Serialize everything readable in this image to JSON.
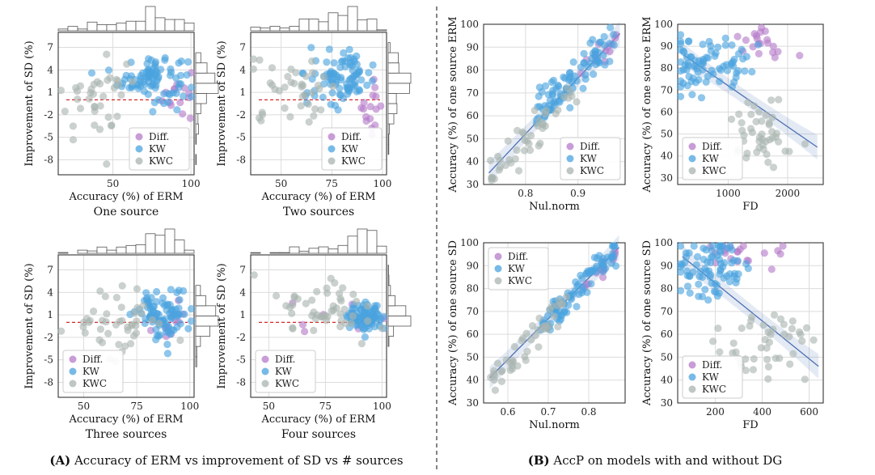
{
  "colors": {
    "Diff.": "#b57bc9",
    "KW": "#4aa3df",
    "KWC": "#a9b4b0",
    "regression": "#4a6fb5",
    "baseline": "#d62728"
  },
  "captions": {
    "A_label": "(A)",
    "A_text": " Accuracy of ERM vs improvement of SD vs # sources",
    "B_label": "(B)",
    "B_text": " AccP on models with and without DG"
  },
  "chart_data": [
    {
      "id": "a1",
      "type": "scatter",
      "title": "One source",
      "xlabel": "Accuracy (%) of ERM",
      "ylabel": "Improvement of SD (%)",
      "xticks": [
        50,
        100
      ],
      "yticks": [
        7,
        4,
        1,
        -2,
        -5,
        -8
      ],
      "xlim": [
        15,
        102
      ],
      "ylim": [
        -10,
        9
      ],
      "baseline": 0,
      "legend": [
        "Diff.",
        "KW",
        "KWC"
      ],
      "legend_position": "lower-right",
      "marginal_hist": true,
      "series": [
        {
          "name": "Diff.",
          "center": [
            92,
            0.5
          ],
          "spread": [
            5,
            2
          ],
          "n": 14
        },
        {
          "name": "KW",
          "center": [
            75,
            3
          ],
          "spread": [
            11,
            1.6
          ],
          "n": 90
        },
        {
          "name": "KWC",
          "center": [
            40,
            0
          ],
          "spread": [
            13,
            2.8
          ],
          "n": 38
        }
      ]
    },
    {
      "id": "a2",
      "type": "scatter",
      "title": "Two sources",
      "xlabel": "Accuracy (%) of ERM",
      "ylabel": "Improvement of SD (%)",
      "xticks": [
        50,
        75,
        100
      ],
      "yticks": [
        7,
        4,
        1,
        -2,
        -5,
        -8
      ],
      "xlim": [
        35,
        102
      ],
      "ylim": [
        -10,
        9
      ],
      "baseline": 0,
      "legend": [
        "Diff.",
        "KW",
        "KWC"
      ],
      "legend_position": "lower-right",
      "marginal_hist": true,
      "series": [
        {
          "name": "Diff.",
          "center": [
            94,
            -1.5
          ],
          "spread": [
            3,
            1.8
          ],
          "n": 16
        },
        {
          "name": "KW",
          "center": [
            80,
            3
          ],
          "spread": [
            8,
            1.8
          ],
          "n": 90
        },
        {
          "name": "KWC",
          "center": [
            58,
            1.5
          ],
          "spread": [
            11,
            2.2
          ],
          "n": 40
        }
      ]
    },
    {
      "id": "a3",
      "type": "scatter",
      "title": "Three sources",
      "xlabel": "Accuracy (%) of ERM",
      "ylabel": "Improvement of SD (%)",
      "xticks": [
        50,
        75,
        100
      ],
      "yticks": [
        7,
        4,
        1,
        -2,
        -5,
        -8
      ],
      "xlim": [
        38,
        102
      ],
      "ylim": [
        -10,
        9
      ],
      "baseline": 0,
      "legend": [
        "Diff.",
        "KW",
        "KWC"
      ],
      "legend_position": "lower-left",
      "marginal_hist": true,
      "series": [
        {
          "name": "Diff.",
          "center": [
            90,
            0
          ],
          "spread": [
            5,
            1.5
          ],
          "n": 14
        },
        {
          "name": "KW",
          "center": [
            88,
            1
          ],
          "spread": [
            6,
            1.6
          ],
          "n": 90
        },
        {
          "name": "KWC",
          "center": [
            65,
            0
          ],
          "spread": [
            12,
            2.4
          ],
          "n": 45
        }
      ]
    },
    {
      "id": "a4",
      "type": "scatter",
      "title": "Four sources",
      "xlabel": "Accuracy (%) of ERM",
      "ylabel": "Improvement of SD (%)",
      "xticks": [
        50,
        75,
        100
      ],
      "yticks": [
        7,
        4,
        1,
        -2,
        -5,
        -8
      ],
      "xlim": [
        42,
        102
      ],
      "ylim": [
        -10,
        9
      ],
      "baseline": 0,
      "legend": [
        "Diff.",
        "KW",
        "KWC"
      ],
      "legend_position": "lower-left",
      "marginal_hist": true,
      "series": [
        {
          "name": "Diff.",
          "center": [
            80,
            1
          ],
          "spread": [
            12,
            2
          ],
          "n": 8
        },
        {
          "name": "KW",
          "center": [
            93,
            0.6
          ],
          "spread": [
            4,
            1
          ],
          "n": 90
        },
        {
          "name": "KWC",
          "center": [
            75,
            2
          ],
          "spread": [
            11,
            2
          ],
          "n": 50
        }
      ]
    },
    {
      "id": "b1",
      "type": "scatter",
      "title": "",
      "xlabel": "Nul.norm",
      "ylabel": "Accuracy (%) of one source ERM",
      "xticks": [
        0.8,
        0.9
      ],
      "yticks": [
        30,
        40,
        50,
        60,
        70,
        80,
        90,
        100
      ],
      "xlim": [
        0.72,
        0.99
      ],
      "ylim": [
        30,
        100
      ],
      "legend": [
        "Diff.",
        "KW",
        "KWC"
      ],
      "legend_position": "lower-right",
      "regression": [
        [
          0.73,
          35
        ],
        [
          0.98,
          96
        ]
      ],
      "series": [
        {
          "name": "Diff.",
          "line": [
            [
              0.9,
              78
            ],
            [
              0.975,
              96
            ]
          ],
          "noise": 2,
          "n": 14
        },
        {
          "name": "KW",
          "line": [
            [
              0.82,
              60
            ],
            [
              0.97,
              95
            ]
          ],
          "noise": 4,
          "n": 90
        },
        {
          "name": "KWC",
          "line": [
            [
              0.73,
              35
            ],
            [
              0.9,
              70
            ]
          ],
          "noise": 4,
          "n": 45
        }
      ]
    },
    {
      "id": "b2",
      "type": "scatter",
      "title": "",
      "xlabel": "FD",
      "ylabel": "Accuracy (%) of one source ERM",
      "xticks": [
        1000,
        2000
      ],
      "yticks": [
        30,
        40,
        50,
        60,
        70,
        80,
        90,
        100
      ],
      "xlim": [
        150,
        2600
      ],
      "ylim": [
        27,
        100
      ],
      "legend": [
        "Diff.",
        "KW",
        "KWC"
      ],
      "legend_position": "lower-left",
      "regression": [
        [
          250,
          86
        ],
        [
          2500,
          44
        ]
      ],
      "series": [
        {
          "name": "Diff.",
          "center": [
            1500,
            92
          ],
          "spread": [
            300,
            4
          ],
          "n": 20
        },
        {
          "name": "KW",
          "center": [
            700,
            82
          ],
          "spread": [
            350,
            8
          ],
          "n": 80
        },
        {
          "name": "KWC",
          "center": [
            1500,
            50
          ],
          "spread": [
            250,
            8
          ],
          "n": 45
        }
      ]
    },
    {
      "id": "b3",
      "type": "scatter",
      "title": "",
      "xlabel": "Nul.norm",
      "ylabel": "Accuracy (%) of one source SD",
      "xticks": [
        0.6,
        0.7,
        0.8
      ],
      "yticks": [
        30,
        40,
        50,
        60,
        70,
        80,
        90,
        100
      ],
      "xlim": [
        0.54,
        0.89
      ],
      "ylim": [
        30,
        100
      ],
      "legend": [
        "Diff.",
        "KW",
        "KWC"
      ],
      "legend_position": "upper-left",
      "regression": [
        [
          0.555,
          41
        ],
        [
          0.875,
          98
        ]
      ],
      "series": [
        {
          "name": "Diff.",
          "line": [
            [
              0.78,
              80
            ],
            [
              0.87,
              96
            ]
          ],
          "noise": 2,
          "n": 14
        },
        {
          "name": "KW",
          "line": [
            [
              0.68,
              62
            ],
            [
              0.87,
              97
            ]
          ],
          "noise": 3.5,
          "n": 90
        },
        {
          "name": "KWC",
          "line": [
            [
              0.555,
              40
            ],
            [
              0.75,
              75
            ]
          ],
          "noise": 4,
          "n": 45
        }
      ]
    },
    {
      "id": "b4",
      "type": "scatter",
      "title": "",
      "xlabel": "FD",
      "ylabel": "Accuracy (%) of one source SD",
      "xticks": [
        200,
        400,
        600
      ],
      "yticks": [
        30,
        40,
        50,
        60,
        70,
        80,
        90,
        100
      ],
      "xlim": [
        40,
        660
      ],
      "ylim": [
        30,
        100
      ],
      "legend": [
        "Diff.",
        "KW",
        "KWC"
      ],
      "legend_position": "lower-left",
      "regression": [
        [
          60,
          94
        ],
        [
          640,
          46
        ]
      ],
      "series": [
        {
          "name": "Diff.",
          "center": [
            330,
            95
          ],
          "spread": [
            100,
            3
          ],
          "n": 20
        },
        {
          "name": "KW",
          "center": [
            180,
            88
          ],
          "spread": [
            90,
            7
          ],
          "n": 80
        },
        {
          "name": "KWC",
          "center": [
            420,
            55
          ],
          "spread": [
            110,
            9
          ],
          "n": 45
        }
      ]
    }
  ]
}
